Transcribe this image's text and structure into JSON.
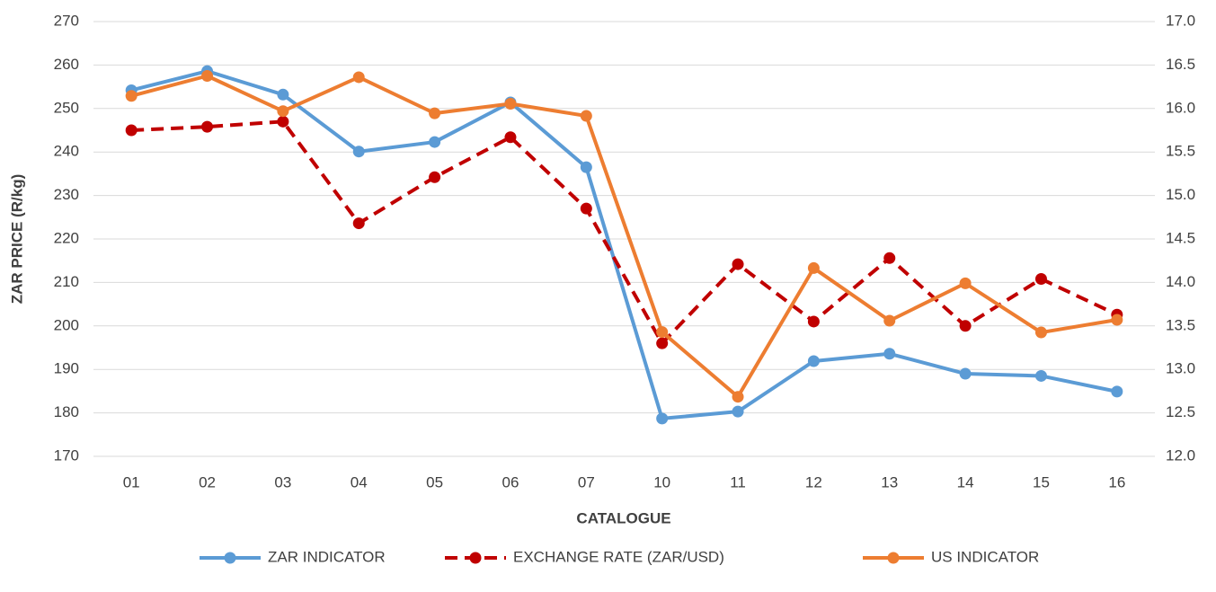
{
  "chart_data": {
    "type": "line",
    "x_label": "CATALOGUE",
    "y_label": "ZAR PRICE (R/kg)",
    "categories": [
      "01",
      "02",
      "03",
      "04",
      "05",
      "06",
      "07",
      "10",
      "11",
      "12",
      "13",
      "14",
      "15",
      "16"
    ],
    "ylim": [
      170,
      270
    ],
    "yticks": [
      170,
      180,
      190,
      200,
      210,
      220,
      230,
      240,
      250,
      260,
      270
    ],
    "y2lim": [
      12,
      17
    ],
    "y2ticks": [
      {
        "value": 12,
        "label": "12.0"
      },
      12.5,
      {
        "value": 13,
        "label": "13.0"
      },
      13.5,
      {
        "value": 14,
        "label": "14.0"
      },
      14.5,
      {
        "value": 15,
        "label": "15.0"
      },
      15.5,
      {
        "value": 16,
        "label": "16.0"
      },
      16.5,
      {
        "value": 17,
        "label": "17.0"
      }
    ],
    "grid": true,
    "legend": "bottom",
    "series": [
      {
        "name": "ZAR INDICATOR",
        "color": "#5b9bd5",
        "dashed": false,
        "values": [
          254.2,
          258.6,
          253.2,
          240.1,
          242.3,
          251.4,
          236.5,
          178.7,
          180.3,
          191.9,
          193.6,
          189.0,
          188.5,
          184.9
        ]
      },
      {
        "name": "EXCHANGE RATE (ZAR/USD)",
        "color": "#c00000",
        "dashed": true,
        "axis": "y2",
        "values": [
          15.75,
          15.79,
          15.85,
          14.68,
          15.21,
          15.67,
          14.85,
          13.3,
          14.21,
          13.55,
          14.28,
          13.5,
          14.04,
          13.63
        ]
      },
      {
        "name": "US INDICATOR",
        "color": "#ed7d31",
        "dashed": false,
        "values": [
          252.9,
          257.5,
          249.4,
          257.2,
          248.9,
          251.1,
          248.3,
          198.6,
          183.7,
          213.3,
          201.2,
          209.8,
          198.5,
          201.4
        ]
      }
    ]
  }
}
